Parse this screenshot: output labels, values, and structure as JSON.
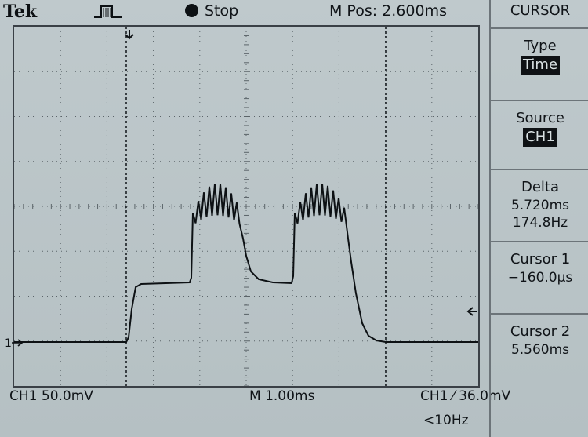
{
  "header": {
    "brand": "Tek",
    "trigger_icon": "pulse-trigger-icon",
    "run_state": "Stop",
    "horizontal_position": "M Pos: 2.600ms"
  },
  "display": {
    "channel_marker": "1",
    "channel_scale": "CH1  50.0mV",
    "timebase": "M 1.00ms",
    "trigger_readout": "CH1 ⁄ 36.0mV",
    "trigger_frequency": "<10Hz"
  },
  "menu": {
    "title": "CURSOR",
    "type_label": "Type",
    "type_value": "Time",
    "source_label": "Source",
    "source_value": "CH1",
    "delta_label": "Delta",
    "delta_time": "5.720ms",
    "delta_freq": "174.8Hz",
    "cursor1_label": "Cursor 1",
    "cursor1_value": "−160.0µs",
    "cursor2_label": "Cursor 2",
    "cursor2_value": "5.560ms"
  },
  "colors": {
    "screen": "#b9c4c7",
    "trace": "#0d1114",
    "grid": "#5b6469"
  }
}
